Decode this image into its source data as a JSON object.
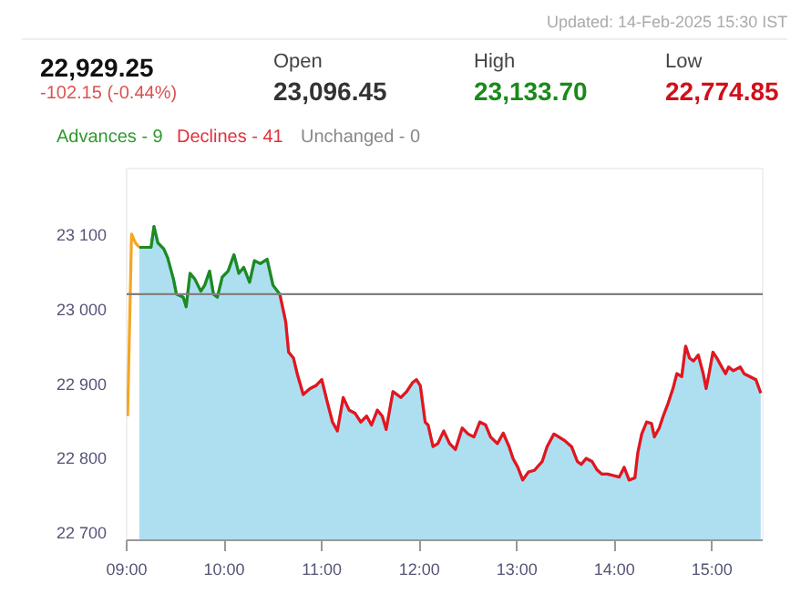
{
  "chart_data": {
    "type": "line",
    "annotations": [
      "Updated: 14-Feb-2025 15:30 IST",
      "22,929.25",
      "-102.15 (-0.44%)",
      "Open",
      "23,096.45",
      "High",
      "23,133.70",
      "Low",
      "22,774.85",
      "Advances - 9",
      "Declines - 41",
      "Unchanged - 0"
    ],
    "xlim": [
      9,
      15.52
    ],
    "ylim": [
      22690,
      23190
    ],
    "xticks": [
      {
        "value": 9,
        "label": "09:00"
      },
      {
        "value": 10,
        "label": "10:00"
      },
      {
        "value": 11,
        "label": "11:00"
      },
      {
        "value": 12,
        "label": "12:00"
      },
      {
        "value": 13,
        "label": "13:00"
      },
      {
        "value": 14,
        "label": "14:00"
      },
      {
        "value": 15,
        "label": "15:00"
      }
    ],
    "yticks": [
      {
        "value": 22700,
        "label": "22 700"
      },
      {
        "value": 22800,
        "label": "22 800"
      },
      {
        "value": 22900,
        "label": "22 900"
      },
      {
        "value": 23000,
        "label": "23 000"
      },
      {
        "value": 23100,
        "label": "23 100"
      }
    ],
    "grid": false,
    "ref_lines": [
      {
        "axis": "y",
        "value": 23021,
        "color": "#808080"
      }
    ],
    "series": [
      {
        "type": "area",
        "color": "#6cc4e6",
        "x": [
          9.13,
          9.25,
          9.28,
          9.32,
          9.38,
          9.42,
          9.48,
          9.51,
          9.58,
          9.61,
          9.65,
          9.7,
          9.76,
          9.8,
          9.85,
          9.89,
          9.93,
          9.98,
          10.04,
          10.1,
          10.15,
          10.2,
          10.26,
          10.31,
          10.37,
          10.44,
          10.5,
          10.57,
          10.63,
          10.66,
          10.71,
          10.75,
          10.81,
          10.88,
          10.94,
          11.0,
          11.06,
          11.11,
          11.16,
          11.22,
          11.28,
          11.34,
          11.4,
          11.46,
          11.51,
          11.57,
          11.62,
          11.66,
          11.73,
          11.81,
          11.87,
          11.93,
          11.97,
          12.01,
          12.06,
          12.09,
          12.14,
          12.19,
          12.25,
          12.31,
          12.37,
          12.44,
          12.5,
          12.56,
          12.62,
          12.68,
          12.73,
          12.8,
          12.86,
          12.92,
          12.96,
          13.01,
          13.06,
          13.12,
          13.18,
          13.26,
          13.31,
          13.38,
          13.43,
          13.49,
          13.56,
          13.62,
          13.66,
          13.71,
          13.77,
          13.82,
          13.87,
          13.93,
          13.99,
          14.05,
          14.1,
          14.15,
          14.21,
          14.24,
          14.28,
          14.33,
          14.38,
          14.41,
          14.46,
          14.5,
          14.55,
          14.6,
          14.64,
          14.69,
          14.73,
          14.77,
          14.81,
          14.86,
          14.91,
          14.94,
          14.97,
          15.01,
          15.05,
          15.1,
          15.14,
          15.17,
          15.22,
          15.29,
          15.33,
          15.39,
          15.45,
          15.5
        ],
        "values": [
          23084,
          23084,
          23112,
          23090,
          23082,
          23070,
          23041,
          23021,
          23017,
          23004,
          23049,
          23041,
          23025,
          23033,
          23052,
          23021,
          23017,
          23044,
          23052,
          23074,
          23049,
          23057,
          23037,
          23066,
          23062,
          23068,
          23033,
          23021,
          22984,
          22943,
          22935,
          22913,
          22886,
          22894,
          22898,
          22906,
          22874,
          22849,
          22837,
          22882,
          22865,
          22861,
          22849,
          22857,
          22845,
          22865,
          22857,
          22839,
          22890,
          22882,
          22890,
          22902,
          22906,
          22898,
          22849,
          22845,
          22816,
          22820,
          22837,
          22820,
          22812,
          22841,
          22833,
          22829,
          22849,
          22845,
          22829,
          22820,
          22834,
          22816,
          22800,
          22788,
          22771,
          22782,
          22784,
          22796,
          22816,
          22833,
          22829,
          22824,
          22816,
          22796,
          22792,
          22800,
          22796,
          22785,
          22779,
          22779,
          22777,
          22775,
          22788,
          22771,
          22774,
          22808,
          22833,
          22849,
          22847,
          22829,
          22841,
          22857,
          22874,
          22894,
          22914,
          22910,
          22951,
          22935,
          22931,
          22939,
          22914,
          22894,
          22914,
          22943,
          22935,
          22923,
          22914,
          22923,
          22918,
          22923,
          22914,
          22910,
          22906,
          22888
        ]
      },
      {
        "color": "#f5a623",
        "x": [
          9.01,
          9.05,
          9.09,
          9.13
        ],
        "values": [
          22857,
          23102,
          23090,
          23084
        ]
      },
      {
        "color": "#1f8a1f",
        "x": [
          9.13,
          9.25,
          9.28,
          9.32,
          9.38,
          9.42,
          9.48,
          9.51,
          9.58,
          9.61,
          9.65,
          9.7,
          9.76,
          9.8,
          9.85,
          9.89,
          9.93,
          9.98,
          10.04,
          10.1,
          10.15,
          10.2,
          10.26,
          10.31,
          10.37,
          10.44,
          10.5,
          10.57
        ],
        "values": [
          23084,
          23084,
          23112,
          23090,
          23082,
          23070,
          23041,
          23021,
          23017,
          23004,
          23049,
          23041,
          23025,
          23033,
          23052,
          23021,
          23017,
          23044,
          23052,
          23074,
          23049,
          23057,
          23037,
          23066,
          23062,
          23068,
          23033,
          23021
        ]
      },
      {
        "color": "#e8141c",
        "x": [
          10.57,
          10.63,
          10.66,
          10.71,
          10.75,
          10.81,
          10.88,
          10.94,
          11.0,
          11.06,
          11.11,
          11.16,
          11.22,
          11.28,
          11.34,
          11.4,
          11.46,
          11.51,
          11.57,
          11.62,
          11.66,
          11.73,
          11.81,
          11.87,
          11.93,
          11.97,
          12.01,
          12.06,
          12.09,
          12.14,
          12.19,
          12.25,
          12.31,
          12.37,
          12.44,
          12.5,
          12.56,
          12.62,
          12.68,
          12.73,
          12.8,
          12.86,
          12.92,
          12.96,
          13.01,
          13.06,
          13.12,
          13.18,
          13.26,
          13.31,
          13.38,
          13.43,
          13.49,
          13.56,
          13.62,
          13.66,
          13.71,
          13.77,
          13.82,
          13.87,
          13.93,
          13.99,
          14.05,
          14.1,
          14.15,
          14.21,
          14.24,
          14.28,
          14.33,
          14.38,
          14.41,
          14.46,
          14.5,
          14.55,
          14.6,
          14.64,
          14.69,
          14.73,
          14.77,
          14.81,
          14.86,
          14.91,
          14.94,
          14.97,
          15.01,
          15.05,
          15.1,
          15.14,
          15.17,
          15.22,
          15.29,
          15.33,
          15.39,
          15.45,
          15.5
        ],
        "values": [
          23021,
          22984,
          22943,
          22935,
          22913,
          22886,
          22894,
          22898,
          22906,
          22874,
          22849,
          22837,
          22882,
          22865,
          22861,
          22849,
          22857,
          22845,
          22865,
          22857,
          22839,
          22890,
          22882,
          22890,
          22902,
          22906,
          22898,
          22849,
          22845,
          22816,
          22820,
          22837,
          22820,
          22812,
          22841,
          22833,
          22829,
          22849,
          22845,
          22829,
          22820,
          22834,
          22816,
          22800,
          22788,
          22771,
          22782,
          22784,
          22796,
          22816,
          22833,
          22829,
          22824,
          22816,
          22796,
          22792,
          22800,
          22796,
          22785,
          22779,
          22779,
          22777,
          22775,
          22788,
          22771,
          22774,
          22808,
          22833,
          22849,
          22847,
          22829,
          22841,
          22857,
          22874,
          22894,
          22914,
          22910,
          22951,
          22935,
          22931,
          22939,
          22914,
          22894,
          22914,
          22943,
          22935,
          22923,
          22914,
          22923,
          22918,
          22923,
          22914,
          22910,
          22906,
          22888
        ]
      }
    ]
  }
}
